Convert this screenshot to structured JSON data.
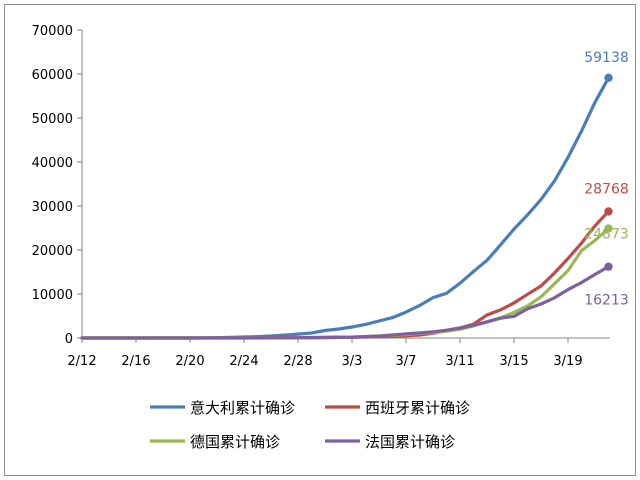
{
  "chart_data": {
    "type": "line",
    "ylim": [
      0,
      70000
    ],
    "yticks": [
      0,
      10000,
      20000,
      30000,
      40000,
      50000,
      60000,
      70000
    ],
    "x_start": "2/12",
    "x_end": "3/22",
    "xticks": [
      "2/12",
      "2/16",
      "2/20",
      "2/24",
      "2/28",
      "3/3",
      "3/7",
      "3/11",
      "3/15",
      "3/19"
    ],
    "grid": false,
    "legend_position": "bottom",
    "series": [
      {
        "name": "意大利累计确诊",
        "color": "#4a7ebb",
        "end_label": "59138",
        "points": [
          [
            "2/12",
            3
          ],
          [
            "2/20",
            3
          ],
          [
            "2/21",
            20
          ],
          [
            "2/22",
            79
          ],
          [
            "2/23",
            155
          ],
          [
            "2/24",
            229
          ],
          [
            "2/25",
            322
          ],
          [
            "2/26",
            453
          ],
          [
            "2/27",
            655
          ],
          [
            "2/28",
            888
          ],
          [
            "2/29",
            1128
          ],
          [
            "3/1",
            1694
          ],
          [
            "3/2",
            2036
          ],
          [
            "3/3",
            2502
          ],
          [
            "3/4",
            3089
          ],
          [
            "3/5",
            3858
          ],
          [
            "3/6",
            4636
          ],
          [
            "3/7",
            5883
          ],
          [
            "3/8",
            7375
          ],
          [
            "3/9",
            9172
          ],
          [
            "3/10",
            10149
          ],
          [
            "3/11",
            12462
          ],
          [
            "3/12",
            15113
          ],
          [
            "3/13",
            17660
          ],
          [
            "3/14",
            21157
          ],
          [
            "3/15",
            24747
          ],
          [
            "3/16",
            27980
          ],
          [
            "3/17",
            31506
          ],
          [
            "3/18",
            35713
          ],
          [
            "3/19",
            41035
          ],
          [
            "3/20",
            47021
          ],
          [
            "3/21",
            53578
          ],
          [
            "3/22",
            59138
          ]
        ]
      },
      {
        "name": "西班牙累计确诊",
        "color": "#be4b48",
        "end_label": "28768",
        "points": [
          [
            "2/12",
            2
          ],
          [
            "2/24",
            2
          ],
          [
            "2/26",
            13
          ],
          [
            "2/28",
            32
          ],
          [
            "3/1",
            84
          ],
          [
            "3/3",
            165
          ],
          [
            "3/5",
            282
          ],
          [
            "3/7",
            500
          ],
          [
            "3/8",
            673
          ],
          [
            "3/9",
            1073
          ],
          [
            "3/10",
            1695
          ],
          [
            "3/11",
            2277
          ],
          [
            "3/12",
            3146
          ],
          [
            "3/13",
            5232
          ],
          [
            "3/14",
            6391
          ],
          [
            "3/15",
            7988
          ],
          [
            "3/16",
            9942
          ],
          [
            "3/17",
            11826
          ],
          [
            "3/18",
            14769
          ],
          [
            "3/19",
            18077
          ],
          [
            "3/20",
            21571
          ],
          [
            "3/21",
            25496
          ],
          [
            "3/22",
            28768
          ]
        ]
      },
      {
        "name": "德国累计确诊",
        "color": "#98b954",
        "end_label": "24873",
        "points": [
          [
            "2/12",
            16
          ],
          [
            "2/24",
            16
          ],
          [
            "2/26",
            27
          ],
          [
            "2/28",
            48
          ],
          [
            "3/1",
            130
          ],
          [
            "3/3",
            196
          ],
          [
            "3/5",
            482
          ],
          [
            "3/7",
            795
          ],
          [
            "3/8",
            1040
          ],
          [
            "3/9",
            1224
          ],
          [
            "3/10",
            1565
          ],
          [
            "3/11",
            1966
          ],
          [
            "3/12",
            2745
          ],
          [
            "3/13",
            3675
          ],
          [
            "3/14",
            4599
          ],
          [
            "3/15",
            5813
          ],
          [
            "3/16",
            7272
          ],
          [
            "3/17",
            9367
          ],
          [
            "3/18",
            12327
          ],
          [
            "3/19",
            15320
          ],
          [
            "3/20",
            19848
          ],
          [
            "3/21",
            22213
          ],
          [
            "3/22",
            24873
          ]
        ]
      },
      {
        "name": "法国累计确诊",
        "color": "#7d60a0",
        "end_label": "16213",
        "points": [
          [
            "2/12",
            11
          ],
          [
            "2/24",
            12
          ],
          [
            "2/26",
            18
          ],
          [
            "2/28",
            57
          ],
          [
            "3/1",
            130
          ],
          [
            "3/3",
            212
          ],
          [
            "3/5",
            423
          ],
          [
            "3/7",
            949
          ],
          [
            "3/8",
            1126
          ],
          [
            "3/9",
            1412
          ],
          [
            "3/10",
            1784
          ],
          [
            "3/11",
            2281
          ],
          [
            "3/12",
            2876
          ],
          [
            "3/13",
            3661
          ],
          [
            "3/14",
            4499
          ],
          [
            "3/15",
            4923
          ],
          [
            "3/16",
            6633
          ],
          [
            "3/17",
            7730
          ],
          [
            "3/18",
            9134
          ],
          [
            "3/19",
            10995
          ],
          [
            "3/20",
            12612
          ],
          [
            "3/21",
            14459
          ],
          [
            "3/22",
            16213
          ]
        ]
      }
    ]
  }
}
